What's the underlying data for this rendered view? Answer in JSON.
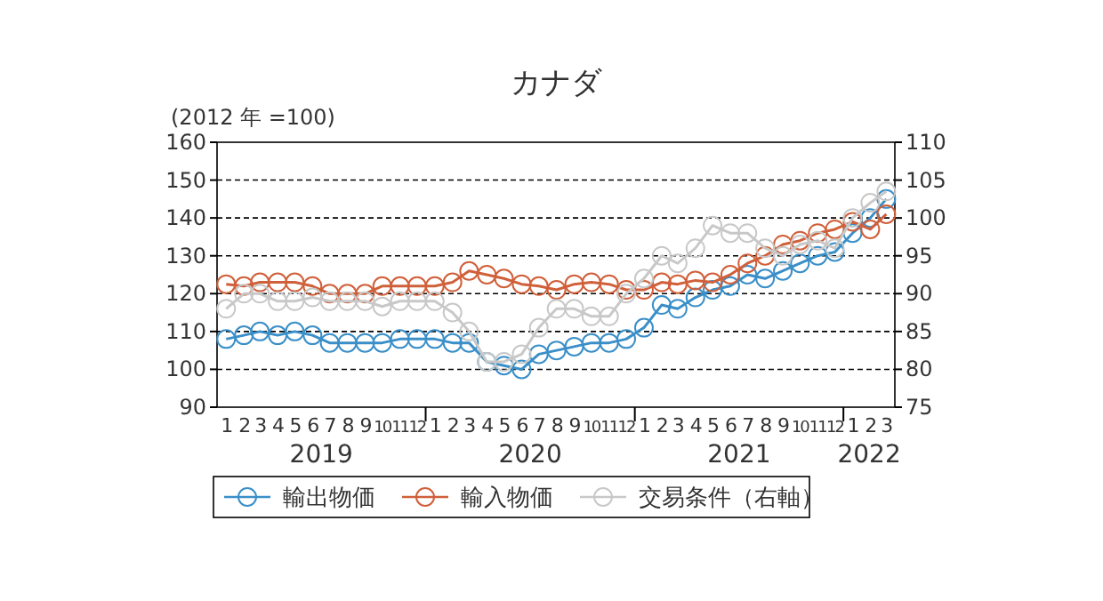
{
  "chart_data": {
    "type": "line",
    "title": "カナダ",
    "ylabel": "(2012 年 =100)",
    "x": [
      "2019-01",
      "2019-02",
      "2019-03",
      "2019-04",
      "2019-05",
      "2019-06",
      "2019-07",
      "2019-08",
      "2019-09",
      "2019-10",
      "2019-11",
      "2019-12",
      "2020-01",
      "2020-02",
      "2020-03",
      "2020-04",
      "2020-05",
      "2020-06",
      "2020-07",
      "2020-08",
      "2020-09",
      "2020-10",
      "2020-11",
      "2020-12",
      "2021-01",
      "2021-02",
      "2021-03",
      "2021-04",
      "2021-05",
      "2021-06",
      "2021-07",
      "2021-08",
      "2021-09",
      "2021-10",
      "2021-11",
      "2021-12",
      "2022-01",
      "2022-02",
      "2022-03"
    ],
    "series": [
      {
        "name": "輸出物価",
        "color": "#3a8fc8",
        "values": [
          108,
          109,
          110,
          109,
          110,
          109,
          107,
          107,
          107,
          107,
          108,
          108,
          108,
          107,
          107,
          102,
          101,
          100,
          104,
          105,
          106,
          107,
          107,
          108,
          111,
          117,
          116,
          119,
          121,
          122,
          125,
          124,
          126,
          128,
          130,
          131,
          136,
          140,
          145
        ]
      },
      {
        "name": "輸入物価",
        "color": "#d0603a",
        "values": [
          122.5,
          122,
          123,
          123,
          123,
          122,
          120,
          120,
          120,
          122,
          122,
          122,
          122,
          123,
          126,
          125,
          124,
          122.5,
          122,
          121,
          122.5,
          123,
          122.5,
          121,
          121,
          123,
          122.5,
          123.5,
          123,
          125,
          128,
          130,
          133,
          134,
          136,
          137,
          139,
          137,
          141
        ]
      },
      {
        "name": "交易条件（右軸）",
        "color": "#c8c8c8",
        "axis": "y2",
        "values": [
          88,
          90,
          90,
          89,
          89,
          89.5,
          89,
          89,
          89,
          88.3,
          89,
          89,
          89,
          87.5,
          85,
          81,
          81,
          82,
          85.5,
          88,
          88,
          87,
          87,
          90,
          92,
          95,
          94,
          96,
          99,
          98,
          98,
          96,
          95,
          96.5,
          97,
          96,
          100,
          102,
          103.5
        ]
      }
    ],
    "xlim": [
      "2018-12-16",
      "2022-03-16"
    ],
    "xticks": [
      {
        "value": "2019-01",
        "label": "1"
      },
      {
        "value": "2019-02",
        "label": "2"
      },
      {
        "value": "2019-03",
        "label": "3"
      },
      {
        "value": "2019-04",
        "label": "4"
      },
      {
        "value": "2019-05",
        "label": "5"
      },
      {
        "value": "2019-06",
        "label": "6"
      },
      {
        "value": "2019-07",
        "label": "7"
      },
      {
        "value": "2019-08",
        "label": "8"
      },
      {
        "value": "2019-09",
        "label": "9"
      },
      {
        "value": "2019-10",
        "label": "10"
      },
      {
        "value": "2019-11",
        "label": "11"
      },
      {
        "value": "2019-12",
        "label": "12"
      },
      {
        "value": "2019-12-16",
        "label": null
      },
      {
        "value": "2020-01",
        "label": "1"
      },
      {
        "value": "2020-02",
        "label": "2"
      },
      {
        "value": "2020-03",
        "label": "3"
      },
      {
        "value": "2020-04",
        "label": "4"
      },
      {
        "value": "2020-05",
        "label": "5"
      },
      {
        "value": "2020-06",
        "label": "6"
      },
      {
        "value": "2020-07",
        "label": "7"
      },
      {
        "value": "2020-08",
        "label": "8"
      },
      {
        "value": "2020-09",
        "label": "9"
      },
      {
        "value": "2020-10",
        "label": "10"
      },
      {
        "value": "2020-11",
        "label": "11"
      },
      {
        "value": "2020-12",
        "label": "12"
      },
      {
        "value": "2020-12-16",
        "label": null
      },
      {
        "value": "2021-01",
        "label": "1"
      },
      {
        "value": "2021-02",
        "label": "2"
      },
      {
        "value": "2021-03",
        "label": "3"
      },
      {
        "value": "2021-04",
        "label": "4"
      },
      {
        "value": "2021-05",
        "label": "5"
      },
      {
        "value": "2021-06",
        "label": "6"
      },
      {
        "value": "2021-07",
        "label": "7"
      },
      {
        "value": "2021-08",
        "label": "8"
      },
      {
        "value": "2021-09",
        "label": "9"
      },
      {
        "value": "2021-10",
        "label": "10"
      },
      {
        "value": "2021-11",
        "label": "11"
      },
      {
        "value": "2021-12",
        "label": "12"
      },
      {
        "value": "2021-12-16",
        "label": null
      },
      {
        "value": "2022-01",
        "label": "1"
      },
      {
        "value": "2022-02",
        "label": "2"
      },
      {
        "value": "2022-03",
        "label": "3"
      }
    ],
    "ylim": [
      90,
      160
    ],
    "yticks": [
      90,
      100,
      110,
      120,
      130,
      140,
      150,
      160
    ],
    "y2lim": [
      75,
      110
    ],
    "y2ticks": [
      75,
      80,
      85,
      90,
      95,
      100,
      105,
      110
    ],
    "annotations": [
      "2019",
      "2020",
      "2021",
      "2022"
    ],
    "grid": "y",
    "legend": "bottom",
    "marker": "circle",
    "line_style": "solid"
  }
}
